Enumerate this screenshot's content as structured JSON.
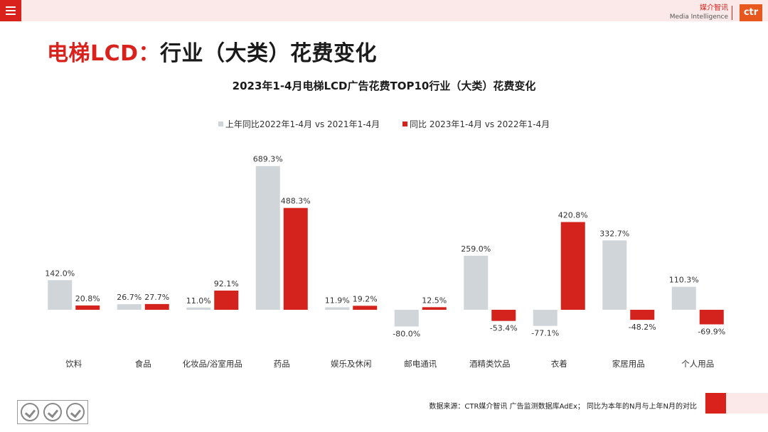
{
  "header": {
    "logo_cn": "媒介智讯",
    "logo_en": "Media Intelligence",
    "logo_mark": "ctr"
  },
  "page_title_red": "电梯LCD：",
  "page_title_dark": "行业（大类）花费变化",
  "footer_note": "数据来源：CTR媒介智讯 广告监测数据库AdEx；   同比为本年的N月与上年N月的对比",
  "chart_data": {
    "type": "bar",
    "title": "2023年1-4月电梯LCD广告花费TOP10行业（大类）花费变化",
    "categories": [
      "饮料",
      "食品",
      "化妆品/浴室用品",
      "药品",
      "娱乐及休闲",
      "邮电通讯",
      "酒精类饮品",
      "衣着",
      "家居用品",
      "个人用品"
    ],
    "series": [
      {
        "name": "上年同比2022年1-4月 vs 2021年1-4月",
        "color": "#cfd5d8",
        "values": [
          142.0,
          26.7,
          11.0,
          689.3,
          11.9,
          -80.0,
          259.0,
          -77.1,
          332.7,
          110.3
        ],
        "labels": [
          "142.0%",
          "26.7%",
          "11.0%",
          "689.3%",
          "11.9%",
          "-80.0%",
          "259.0%",
          "-77.1%",
          "332.7%",
          "110.3%"
        ]
      },
      {
        "name": "同比 2023年1-4月  vs 2022年1-4月",
        "color": "#d4231d",
        "values": [
          20.8,
          27.7,
          92.1,
          488.3,
          19.2,
          12.5,
          -53.4,
          420.8,
          -48.2,
          -69.9
        ],
        "labels": [
          "20.8%",
          "27.7%",
          "92.1%",
          "488.3%",
          "19.2%",
          "12.5%",
          "-53.4%",
          "420.8%",
          "-48.2%",
          "-69.9%"
        ]
      }
    ],
    "legend_position": "top-center",
    "grid": false,
    "ylim": [
      -80,
      690
    ]
  }
}
